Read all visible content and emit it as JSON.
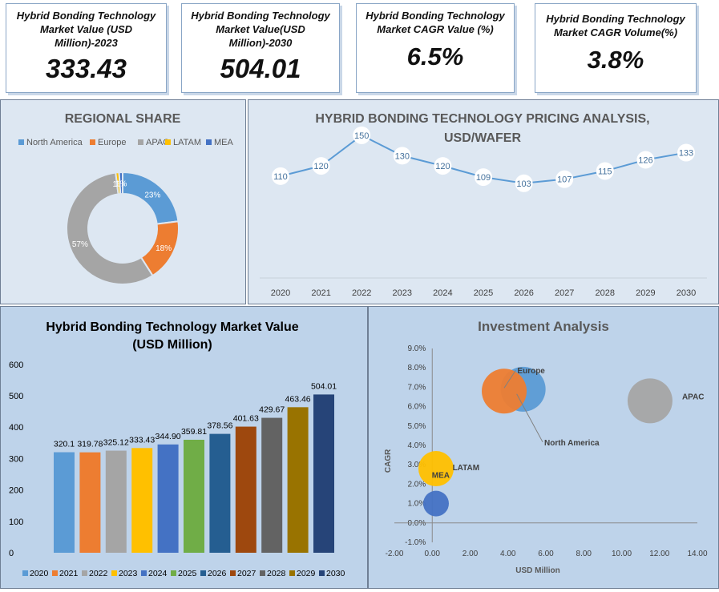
{
  "kpis": [
    {
      "label": "Hybrid Bonding Technology Market Value (USD Million)-2023",
      "value": "333.43"
    },
    {
      "label": "Hybrid Bonding Technology Market Value(USD Million)-2030",
      "value": "504.01"
    },
    {
      "label": "Hybrid Bonding Technology Market CAGR  Value (%)",
      "value": "6.5%"
    },
    {
      "label": "Hybrid Bonding Technology Market CAGR  Volume(%)",
      "value": "3.8%"
    }
  ],
  "chart_data": [
    {
      "type": "pie",
      "title": "REGIONAL SHARE",
      "legend_position": "top",
      "categories": [
        "North America",
        "Europe",
        "APAC",
        "LATAM",
        "MEA"
      ],
      "values": [
        23,
        18,
        57,
        1,
        1
      ],
      "labels": [
        "23%",
        "18%",
        "57%",
        "1%",
        "1%"
      ],
      "colors": [
        "#5b9bd5",
        "#ed7d31",
        "#a5a5a5",
        "#ffc000",
        "#4472c4"
      ]
    },
    {
      "type": "line",
      "title": "HYBRID BONDING TECHNOLOGY PRICING ANALYSIS, USD/WAFER",
      "x": [
        "2020",
        "2021",
        "2022",
        "2023",
        "2024",
        "2025",
        "2026",
        "2027",
        "2028",
        "2029",
        "2030"
      ],
      "values": [
        110,
        120,
        150,
        130,
        120,
        109,
        103,
        107,
        115,
        126,
        133
      ],
      "color": "#5b9bd5"
    },
    {
      "type": "bar",
      "title": "Hybrid Bonding Technology Market Value (USD Million)",
      "categories": [
        "2020",
        "2021",
        "2022",
        "2023",
        "2024",
        "2025",
        "2026",
        "2027",
        "2028",
        "2029",
        "2030"
      ],
      "values": [
        320.1,
        319.78,
        325.12,
        333.43,
        344.9,
        359.81,
        378.56,
        401.63,
        429.67,
        463.46,
        504.01
      ],
      "labels": [
        "320.1",
        "319.78",
        "325.12",
        "333.43",
        "344.90",
        "359.81",
        "378.56",
        "401.63",
        "429.67",
        "463.46",
        "504.01"
      ],
      "ylim": [
        0,
        600
      ],
      "yticks": [
        "0",
        "100",
        "200",
        "300",
        "400",
        "500",
        "600"
      ],
      "legend_position": "bottom",
      "colors": [
        "#5b9bd5",
        "#ed7d31",
        "#a5a5a5",
        "#ffc000",
        "#4472c4",
        "#70ad47",
        "#255e91",
        "#9e480e",
        "#636363",
        "#997300",
        "#264478"
      ]
    },
    {
      "type": "scatter",
      "title": "Investment Analysis",
      "xlabel": "USD Million",
      "ylabel": "CAGR",
      "xlim": [
        -2,
        14
      ],
      "ylim": [
        -1,
        9
      ],
      "xticks": [
        "-2.00",
        "0.00",
        "2.00",
        "4.00",
        "6.00",
        "8.00",
        "10.00",
        "12.00",
        "14.00"
      ],
      "yticks": [
        "-1.0%",
        "0.0%",
        "1.0%",
        "2.0%",
        "3.0%",
        "4.0%",
        "5.0%",
        "6.0%",
        "7.0%",
        "8.0%",
        "9.0%"
      ],
      "points": [
        {
          "name": "North America",
          "x": 4.8,
          "y": 6.9,
          "size": 28,
          "color": "#5b9bd5"
        },
        {
          "name": "Europe",
          "x": 3.8,
          "y": 6.8,
          "size": 28,
          "color": "#ed7d31"
        },
        {
          "name": "APAC",
          "x": 11.5,
          "y": 6.3,
          "size": 28,
          "color": "#a5a5a5"
        },
        {
          "name": "LATAM",
          "x": 0.2,
          "y": 2.8,
          "size": 22,
          "color": "#ffc000"
        },
        {
          "name": "MEA",
          "x": 0.2,
          "y": 1.0,
          "size": 16,
          "color": "#4472c4"
        }
      ]
    }
  ]
}
